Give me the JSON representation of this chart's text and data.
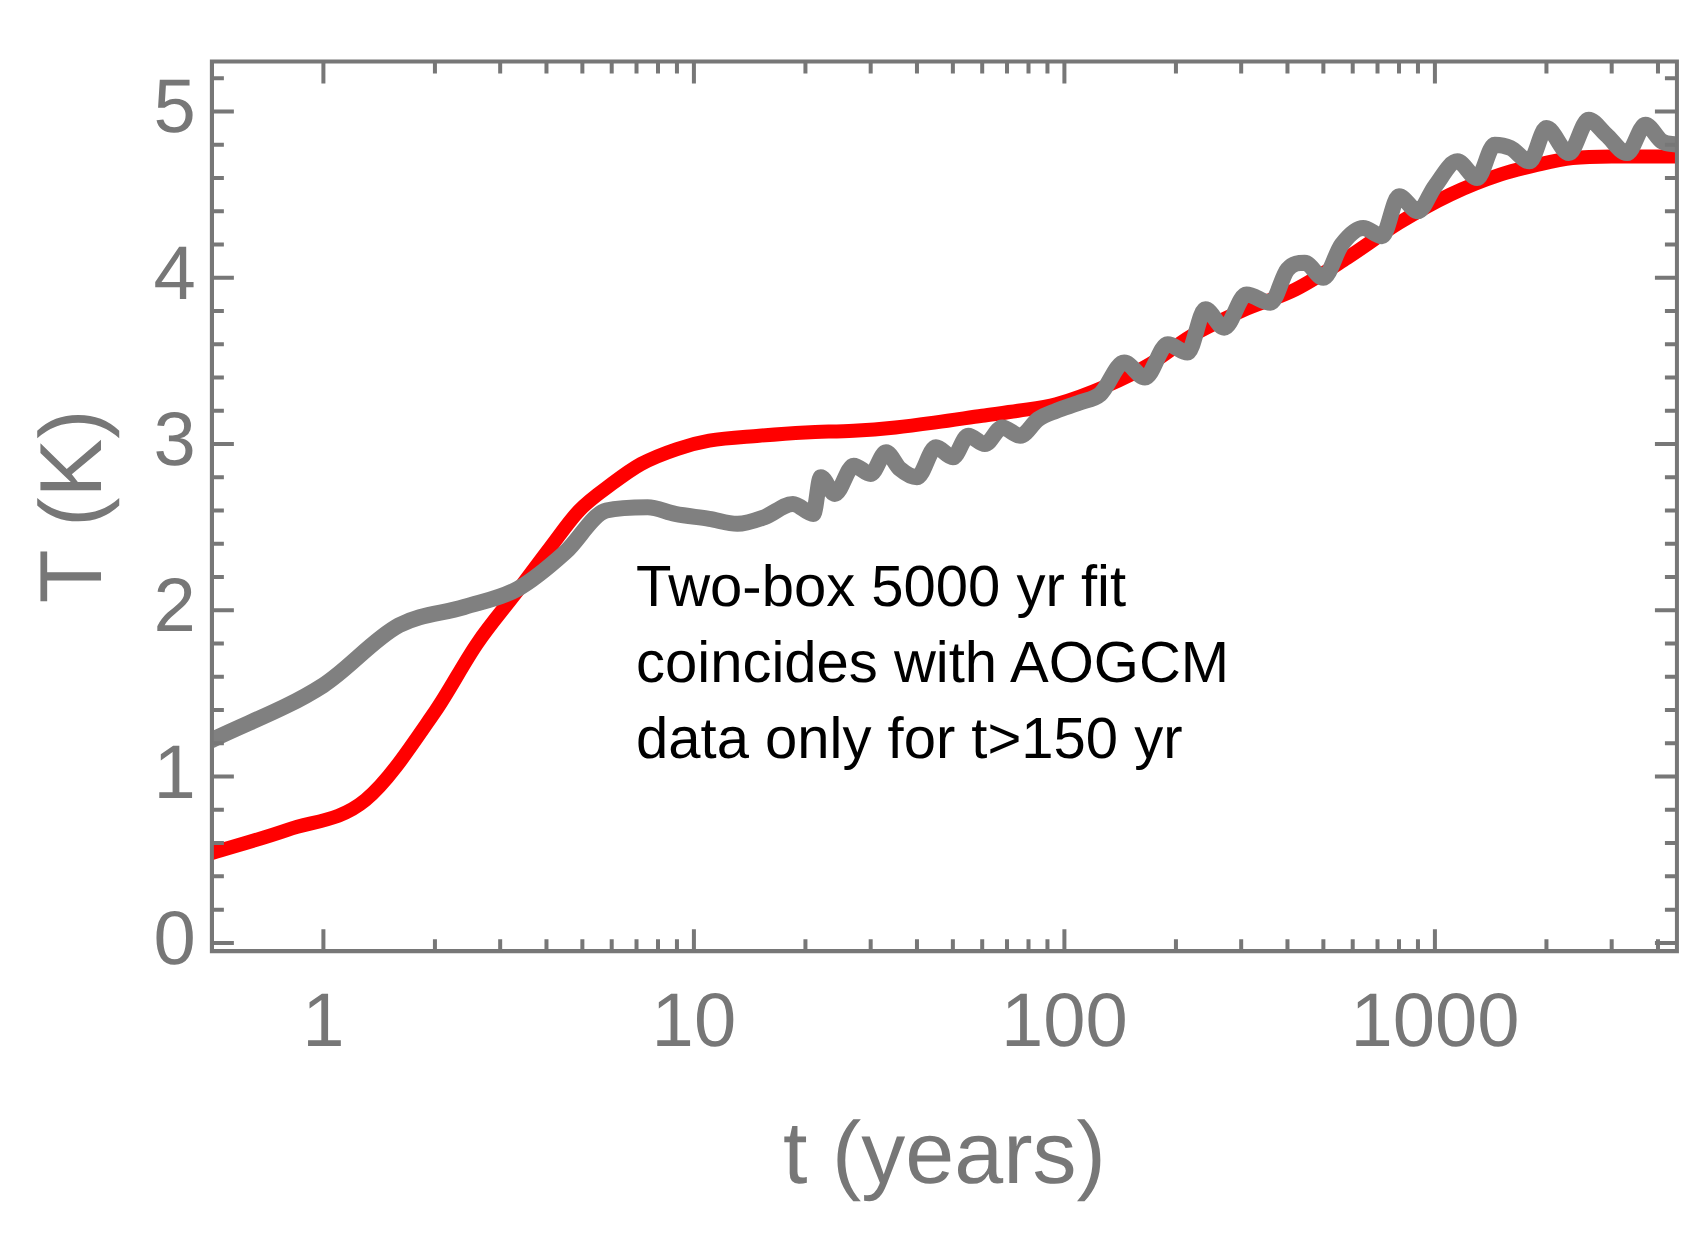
{
  "chart_data": {
    "type": "line",
    "xlabel": "t (years)",
    "ylabel": "T (K)",
    "log": "x",
    "grid": false,
    "legend": false,
    "marker": "none",
    "xlim": [
      0.5,
      4500
    ],
    "ylim": [
      -0.05,
      5.3
    ],
    "xticks": [
      1,
      {
        "value": 2,
        "label": null
      },
      {
        "value": 3,
        "label": null
      },
      {
        "value": 4,
        "label": null
      },
      {
        "value": 5,
        "label": null
      },
      {
        "value": 6,
        "label": null
      },
      {
        "value": 7,
        "label": null
      },
      {
        "value": 8,
        "label": null
      },
      {
        "value": 9,
        "label": null
      },
      10,
      {
        "value": 20,
        "label": null
      },
      {
        "value": 30,
        "label": null
      },
      {
        "value": 40,
        "label": null
      },
      {
        "value": 50,
        "label": null
      },
      {
        "value": 60,
        "label": null
      },
      {
        "value": 70,
        "label": null
      },
      {
        "value": 80,
        "label": null
      },
      {
        "value": 90,
        "label": null
      },
      100,
      {
        "value": 200,
        "label": null
      },
      {
        "value": 300,
        "label": null
      },
      {
        "value": 400,
        "label": null
      },
      {
        "value": 500,
        "label": null
      },
      {
        "value": 600,
        "label": null
      },
      {
        "value": 700,
        "label": null
      },
      {
        "value": 800,
        "label": null
      },
      {
        "value": 900,
        "label": null
      },
      1000,
      {
        "value": 2000,
        "label": null
      },
      {
        "value": 3000,
        "label": null
      },
      {
        "value": 4000,
        "label": null
      }
    ],
    "yticks": [
      0,
      {
        "value": 0.2,
        "label": null
      },
      {
        "value": 0.4,
        "label": null
      },
      {
        "value": 0.6,
        "label": null
      },
      {
        "value": 0.8,
        "label": null
      },
      1,
      {
        "value": 1.2,
        "label": null
      },
      {
        "value": 1.4,
        "label": null
      },
      {
        "value": 1.6,
        "label": null
      },
      {
        "value": 1.8,
        "label": null
      },
      2,
      {
        "value": 2.2,
        "label": null
      },
      {
        "value": 2.4,
        "label": null
      },
      {
        "value": 2.6,
        "label": null
      },
      {
        "value": 2.8,
        "label": null
      },
      3,
      {
        "value": 3.2,
        "label": null
      },
      {
        "value": 3.4,
        "label": null
      },
      {
        "value": 3.6,
        "label": null
      },
      {
        "value": 3.8,
        "label": null
      },
      4,
      {
        "value": 4.2,
        "label": null
      },
      {
        "value": 4.4,
        "label": null
      },
      {
        "value": 4.6,
        "label": null
      },
      {
        "value": 4.8,
        "label": null
      },
      5,
      {
        "value": 5.2,
        "label": null
      }
    ],
    "annotations": [
      "Two-box 5000 yr fit coincides with AOGCM data only for t>150 yr"
    ],
    "series": [
      {
        "color": "#808080",
        "x": [
          0.5,
          1.0,
          1.6,
          2.4,
          3.35,
          4.5,
          5.8,
          7.5,
          8.9,
          11,
          13.1,
          15.5,
          18.5,
          21,
          22,
          24,
          27,
          30,
          33,
          36,
          40,
          45,
          50,
          55,
          61,
          68,
          76,
          85,
          95,
          110,
          125,
          145,
          165,
          190,
          215,
          240,
          270,
          310,
          360,
          400,
          445,
          500,
          560,
          640,
          720,
          800,
          900,
          1000,
          1150,
          1300,
          1450,
          1600,
          1800,
          2000,
          2300,
          2600,
          2900,
          3300,
          3700,
          4100,
          4500
        ],
        "values": [
          1.22,
          1.55,
          1.91,
          2.02,
          2.13,
          2.35,
          2.6,
          2.62,
          2.58,
          2.55,
          2.52,
          2.56,
          2.64,
          2.58,
          2.8,
          2.7,
          2.87,
          2.82,
          2.95,
          2.85,
          2.8,
          2.98,
          2.92,
          3.05,
          3.0,
          3.1,
          3.05,
          3.15,
          3.2,
          3.25,
          3.3,
          3.49,
          3.4,
          3.6,
          3.55,
          3.81,
          3.7,
          3.9,
          3.85,
          4.05,
          4.09,
          4.0,
          4.2,
          4.3,
          4.25,
          4.49,
          4.4,
          4.55,
          4.7,
          4.6,
          4.8,
          4.78,
          4.7,
          4.9,
          4.75,
          4.95,
          4.86,
          4.75,
          4.92,
          4.82,
          4.8
        ]
      },
      {
        "color": "#ff0000",
        "x": [
          0.5,
          0.8,
          1.3,
          2.0,
          2.6,
          3.35,
          4.1,
          4.9,
          6,
          7.2,
          9,
          11,
          15,
          20,
          27,
          35,
          45,
          60,
          75,
          95,
          130,
          170,
          220,
          300,
          420,
          580,
          800,
          1100,
          1500,
          1900,
          2350,
          3000,
          4100,
          4500
        ],
        "values": [
          0.54,
          0.68,
          0.86,
          1.39,
          1.8,
          2.12,
          2.38,
          2.6,
          2.76,
          2.88,
          2.97,
          3.02,
          3.05,
          3.07,
          3.08,
          3.1,
          3.13,
          3.17,
          3.2,
          3.24,
          3.35,
          3.48,
          3.65,
          3.8,
          3.93,
          4.12,
          4.33,
          4.5,
          4.62,
          4.68,
          4.72,
          4.73,
          4.73,
          4.73
        ]
      }
    ]
  }
}
